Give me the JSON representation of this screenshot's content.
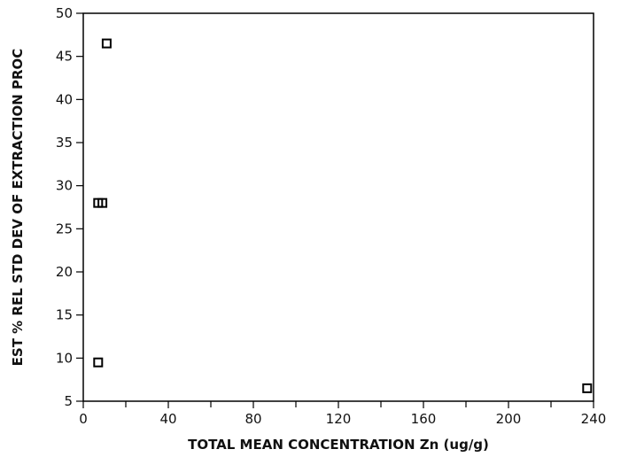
{
  "chart_data": {
    "type": "scatter",
    "title": "",
    "xlabel": "TOTAL MEAN CONCENTRATION Zn (ug/g)",
    "ylabel": "EST % REL STD DEV OF EXTRACTION PROC",
    "xlim": [
      0,
      240
    ],
    "ylim": [
      5,
      50
    ],
    "x_ticks": [
      0,
      40,
      80,
      120,
      160,
      200,
      240
    ],
    "y_ticks": [
      5,
      10,
      15,
      20,
      25,
      30,
      35,
      40,
      45,
      50
    ],
    "x_minor_step": 20,
    "grid": false,
    "legend": "none",
    "marker": "open-square",
    "series": [
      {
        "x": [
          11,
          7,
          9,
          7,
          237
        ],
        "y": [
          46.5,
          28,
          28,
          9.5,
          6.5
        ]
      }
    ]
  }
}
